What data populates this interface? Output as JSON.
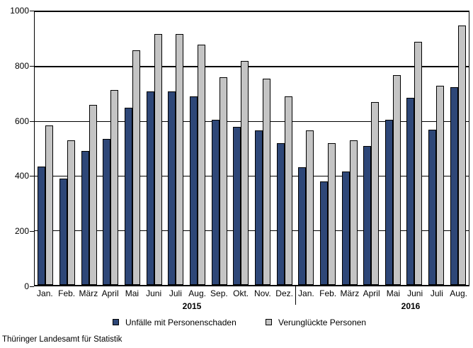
{
  "chart_data": {
    "type": "bar",
    "title": "",
    "xlabel": "",
    "ylabel": "",
    "ylim": [
      0,
      1000
    ],
    "yticks": [
      0,
      200,
      400,
      600,
      800,
      1000
    ],
    "grid": "horizontal",
    "legend_position": "bottom",
    "x_groups": [
      {
        "year": "2015",
        "months": [
          "Jan.",
          "Feb.",
          "März",
          "April",
          "Mai",
          "Juni",
          "Juli",
          "Aug.",
          "Sep.",
          "Okt.",
          "Nov.",
          "Dez."
        ]
      },
      {
        "year": "2016",
        "months": [
          "Jan.",
          "Feb.",
          "März",
          "April",
          "Mai",
          "Juni",
          "Juli",
          "Aug."
        ]
      }
    ],
    "series": [
      {
        "name": "Unfälle mit Personenschaden",
        "color": "#2e4778",
        "values": [
          435,
          390,
          490,
          535,
          650,
          710,
          710,
          690,
          605,
          580,
          565,
          520,
          430,
          380,
          415,
          510,
          605,
          685,
          570,
          725
        ]
      },
      {
        "name": "Verunglückte Personen",
        "color": "#c4c4c4",
        "values": [
          585,
          530,
          660,
          715,
          860,
          920,
          920,
          880,
          760,
          820,
          755,
          690,
          565,
          520,
          530,
          670,
          770,
          890,
          730,
          950
        ]
      }
    ]
  },
  "footer": {
    "source": "Thüringer Landesamt für Statistik"
  },
  "colors": {
    "bar_border": "#000000",
    "grid": "#000000",
    "background": "#ffffff"
  }
}
